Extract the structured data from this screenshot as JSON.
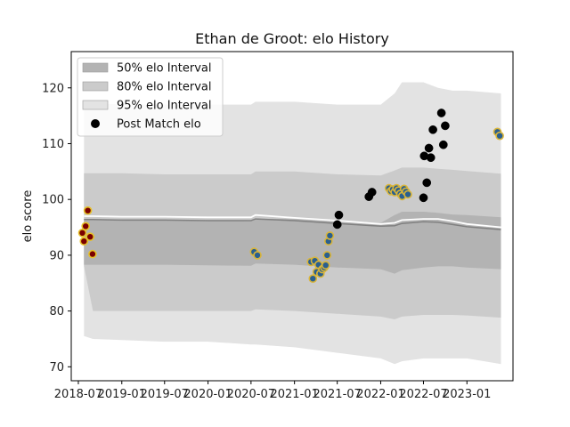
{
  "chart_data": {
    "type": "scatter",
    "title": "Ethan de Groot: elo History",
    "xlabel": "",
    "ylabel": "elo score",
    "xlim": [
      "2018-06-01",
      "2023-07-15"
    ],
    "ylim": [
      67.5,
      126.5
    ],
    "x_ticks": [
      "2018-07",
      "2019-01",
      "2019-07",
      "2020-01",
      "2020-07",
      "2021-01",
      "2021-07",
      "2022-01",
      "2022-07",
      "2023-01"
    ],
    "y_ticks": [
      70,
      80,
      90,
      100,
      110,
      120
    ],
    "grid": false,
    "legend": {
      "placement": "top-left",
      "entries": [
        {
          "label": "50% elo Interval",
          "color": "#b0b0b0"
        },
        {
          "label": "80% elo Interval",
          "color": "#c4c4c4"
        },
        {
          "label": "95% elo Interval",
          "color": "#e2e2e2"
        },
        {
          "label": "Post Match elo",
          "color": "#000000"
        }
      ]
    },
    "colors": {
      "band50": "#b3b3b3",
      "band80": "#cbcbcb",
      "band95": "#e3e3e3",
      "mean_line": "#ffffff",
      "median_line": "#808080",
      "dot_dark": "#000000",
      "dot_gold_fill": "#7a0000",
      "dot_gold_edge": "#e6c229",
      "dot_blue_fill": "#2a5f8f",
      "dot_blue_edge": "#d9b53a"
    },
    "bands": {
      "x": [
        "2018-07-25",
        "2018-09-01",
        "2019-01-01",
        "2019-07-01",
        "2020-01-01",
        "2020-07-01",
        "2020-07-20",
        "2021-01-01",
        "2021-07-01",
        "2022-01-01",
        "2022-03-01",
        "2022-04-01",
        "2022-07-01",
        "2022-09-01",
        "2022-11-01",
        "2023-01-01",
        "2023-05-25"
      ],
      "p95_upper": [
        117.5,
        117.3,
        117.0,
        117.0,
        117.0,
        117.0,
        117.5,
        117.5,
        117.0,
        117.0,
        119.0,
        121.0,
        121.0,
        120.0,
        119.5,
        119.5,
        119.0
      ],
      "p95_lower": [
        75.5,
        75.0,
        74.8,
        74.5,
        74.5,
        74.0,
        74.0,
        73.5,
        72.5,
        71.5,
        70.5,
        71.0,
        71.5,
        71.5,
        71.5,
        71.5,
        70.5
      ],
      "p80_upper": [
        104.7,
        104.7,
        104.7,
        104.5,
        104.5,
        104.5,
        105.0,
        105.0,
        104.5,
        104.3,
        105.2,
        105.7,
        105.7,
        105.5,
        105.3,
        105.1,
        104.6
      ],
      "p80_lower": [
        88.0,
        80.0,
        80.0,
        80.0,
        80.0,
        80.0,
        80.3,
        80.0,
        79.5,
        79.0,
        78.5,
        79.0,
        79.3,
        79.3,
        79.3,
        79.2,
        78.8
      ],
      "p50_upper": [
        96.5,
        96.4,
        96.3,
        96.3,
        96.2,
        96.1,
        96.5,
        96.5,
        96.0,
        95.8,
        97.2,
        97.8,
        97.8,
        97.6,
        97.3,
        97.2,
        96.8
      ],
      "p50_lower": [
        88.3,
        88.3,
        88.3,
        88.3,
        88.2,
        88.1,
        88.5,
        88.3,
        87.8,
        87.5,
        86.7,
        87.3,
        87.8,
        88.0,
        88.0,
        87.8,
        87.5
      ],
      "mean": [
        97.0,
        97.0,
        96.9,
        96.9,
        96.8,
        96.8,
        97.2,
        96.7,
        96.2,
        95.6,
        95.8,
        96.3,
        96.5,
        96.5,
        96.1,
        95.6,
        95.0
      ],
      "median": [
        96.4,
        96.4,
        96.3,
        96.3,
        96.2,
        96.2,
        96.5,
        96.2,
        95.7,
        95.2,
        95.3,
        95.7,
        96.0,
        95.9,
        95.5,
        95.1,
        94.6
      ]
    },
    "series": [
      {
        "name": "Post Match elo",
        "style": "dark",
        "points": [
          {
            "x": "2021-07-01",
            "y": 95.5
          },
          {
            "x": "2021-07-08",
            "y": 97.2
          },
          {
            "x": "2021-11-12",
            "y": 100.5
          },
          {
            "x": "2021-11-25",
            "y": 101.3
          },
          {
            "x": "2022-07-01",
            "y": 100.3
          },
          {
            "x": "2022-07-04",
            "y": 107.8
          },
          {
            "x": "2022-07-15",
            "y": 103.0
          },
          {
            "x": "2022-07-24",
            "y": 109.2
          },
          {
            "x": "2022-08-01",
            "y": 107.5
          },
          {
            "x": "2022-08-10",
            "y": 112.5
          },
          {
            "x": "2022-09-15",
            "y": 115.5
          },
          {
            "x": "2022-09-23",
            "y": 109.8
          },
          {
            "x": "2022-10-01",
            "y": 113.2
          }
        ]
      },
      {
        "name": "",
        "style": "gold",
        "points": [
          {
            "x": "2018-07-18",
            "y": 94.0
          },
          {
            "x": "2018-07-25",
            "y": 92.5
          },
          {
            "x": "2018-08-01",
            "y": 95.2
          },
          {
            "x": "2018-08-10",
            "y": 98.0
          },
          {
            "x": "2018-08-20",
            "y": 93.3
          },
          {
            "x": "2018-08-30",
            "y": 90.2
          }
        ]
      },
      {
        "name": "",
        "style": "blue",
        "points": [
          {
            "x": "2020-07-14",
            "y": 90.6
          },
          {
            "x": "2020-07-28",
            "y": 90.0
          },
          {
            "x": "2021-03-12",
            "y": 88.8
          },
          {
            "x": "2021-03-20",
            "y": 85.8
          },
          {
            "x": "2021-03-28",
            "y": 89.0
          },
          {
            "x": "2021-04-05",
            "y": 87.0
          },
          {
            "x": "2021-04-13",
            "y": 88.3
          },
          {
            "x": "2021-04-21",
            "y": 86.7
          },
          {
            "x": "2021-04-29",
            "y": 87.5
          },
          {
            "x": "2021-05-07",
            "y": 87.8
          },
          {
            "x": "2021-05-13",
            "y": 88.2
          },
          {
            "x": "2021-05-19",
            "y": 90.0
          },
          {
            "x": "2021-05-25",
            "y": 92.5
          },
          {
            "x": "2021-05-31",
            "y": 93.5
          },
          {
            "x": "2022-02-05",
            "y": 102.0
          },
          {
            "x": "2022-02-13",
            "y": 101.5
          },
          {
            "x": "2022-02-21",
            "y": 101.8
          },
          {
            "x": "2022-03-01",
            "y": 101.3
          },
          {
            "x": "2022-03-09",
            "y": 102.0
          },
          {
            "x": "2022-03-17",
            "y": 101.6
          },
          {
            "x": "2022-03-25",
            "y": 101.0
          },
          {
            "x": "2022-04-02",
            "y": 100.6
          },
          {
            "x": "2022-04-10",
            "y": 101.9
          },
          {
            "x": "2022-04-18",
            "y": 101.4
          },
          {
            "x": "2022-04-26",
            "y": 100.9
          },
          {
            "x": "2023-05-10",
            "y": 112.1
          },
          {
            "x": "2023-05-20",
            "y": 111.4
          }
        ]
      }
    ]
  }
}
